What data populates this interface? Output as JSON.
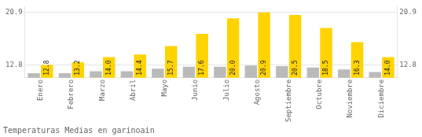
{
  "chart_data": {
    "type": "bar",
    "title": "Temperaturas Medias en garinoain",
    "categories": [
      "Enero",
      "Febrero",
      "Marzo",
      "Abril",
      "Mayo",
      "Junio",
      "Julio",
      "Agosto",
      "Septiembre",
      "Octubre",
      "Noviembre",
      "Diciembre"
    ],
    "series": [
      {
        "color": "#BABABA",
        "values": [
          11.5,
          11.5,
          11.8,
          11.8,
          12.2,
          12.5,
          12.5,
          12.7,
          12.6,
          12.4,
          12.1,
          11.7
        ]
      },
      {
        "color": "#FFD300",
        "values": [
          12.8,
          13.2,
          14.0,
          14.4,
          15.7,
          17.6,
          20.0,
          20.9,
          20.5,
          18.5,
          16.3,
          14.0
        ],
        "data_labels": true,
        "value_labels": [
          "12.8",
          "13.2",
          "14.0",
          "14.4",
          "15.7",
          "17.6",
          "20.0",
          "20.9",
          "20.5",
          "18.5",
          "16.3",
          "14.0"
        ]
      }
    ],
    "ylim": [
      10.8,
      21.8
    ],
    "yticks": [
      12.8,
      20.9
    ],
    "y2lim": [
      10.8,
      21.8
    ],
    "y2ticks": [
      12.8,
      20.9
    ],
    "grid": true
  }
}
